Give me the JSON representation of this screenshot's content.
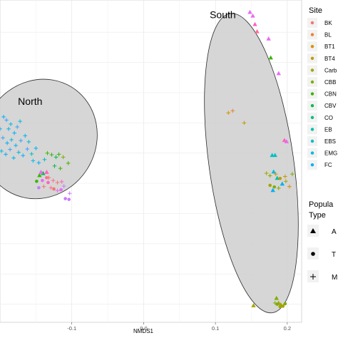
{
  "chart_data": {
    "type": "scatter",
    "xlabel": "NMDS1",
    "ylabel": "",
    "xlim": [
      -0.2,
      0.22
    ],
    "ylim": [
      -0.42,
      0.38
    ],
    "x_ticks": [
      -0.1,
      0.0,
      0.1,
      0.2
    ],
    "x_tick_labels": [
      "-0.1",
      "0.0",
      "0.1",
      "0.2"
    ],
    "grid": true,
    "legend_placement": "right",
    "group_labels": [
      {
        "name": "North",
        "x": -0.175,
        "y": 0.12
      },
      {
        "name": "South",
        "x": 0.092,
        "y": 0.335
      }
    ],
    "ellipses": [
      {
        "group": "North",
        "cx": -0.145,
        "cy": 0.035,
        "rx": 0.085,
        "ry": 0.14,
        "angle": -58
      },
      {
        "group": "South",
        "cx": 0.15,
        "cy": -0.025,
        "rx": 0.059,
        "ry": 0.375,
        "angle": -8
      }
    ],
    "legend": {
      "site_title": "Site",
      "sites": [
        {
          "label": "BK",
          "color": "#F8766D"
        },
        {
          "label": "BL",
          "color": "#EA8331"
        },
        {
          "label": "BT1",
          "color": "#D89000"
        },
        {
          "label": "BT4",
          "color": "#C09B00"
        },
        {
          "label": "Carb",
          "color": "#A3A500"
        },
        {
          "label": "CBB",
          "color": "#7CAE00"
        },
        {
          "label": "CBN",
          "color": "#39B600"
        },
        {
          "label": "CBV",
          "color": "#00BB4E"
        },
        {
          "label": "CO",
          "color": "#00BF7D"
        },
        {
          "label": "EB",
          "color": "#00C1A3"
        },
        {
          "label": "EBS",
          "color": "#00BFC4"
        },
        {
          "label": "EMG",
          "color": "#00BAE0"
        },
        {
          "label": "FC",
          "color": "#00B0F6"
        }
      ],
      "type_title_line1": "Popula",
      "type_title_line2": "Type",
      "types": [
        {
          "label": "A",
          "shape": "triangle"
        },
        {
          "label": "T",
          "shape": "circle"
        },
        {
          "label": "M",
          "shape": "plus"
        }
      ]
    },
    "series": [
      {
        "name": "A",
        "shape": "triangle",
        "points": [
          {
            "x": 0.148,
            "y": 0.35,
            "c": "#E76BF3"
          },
          {
            "x": 0.152,
            "y": 0.341,
            "c": "#E76BF3"
          },
          {
            "x": 0.155,
            "y": 0.32,
            "c": "#FF62BC"
          },
          {
            "x": 0.158,
            "y": 0.302,
            "c": "#FF6C90"
          },
          {
            "x": 0.174,
            "y": 0.284,
            "c": "#E76BF3"
          },
          {
            "x": 0.177,
            "y": 0.237,
            "c": "#39B600"
          },
          {
            "x": 0.188,
            "y": 0.198,
            "c": "#E76BF3"
          },
          {
            "x": 0.199,
            "y": 0.029,
            "c": "#E76BF3"
          },
          {
            "x": 0.196,
            "y": 0.032,
            "c": "#FF62BC"
          },
          {
            "x": 0.179,
            "y": -0.005,
            "c": "#00BFC4"
          },
          {
            "x": 0.183,
            "y": -0.005,
            "c": "#00BFC4"
          },
          {
            "x": 0.181,
            "y": -0.046,
            "c": "#00BAE0"
          },
          {
            "x": 0.186,
            "y": -0.062,
            "c": "#00C1A3"
          },
          {
            "x": 0.193,
            "y": -0.076,
            "c": "#00B0F6"
          },
          {
            "x": 0.18,
            "y": -0.092,
            "c": "#00B0F6"
          },
          {
            "x": 0.185,
            "y": -0.36,
            "c": "#7CAE00"
          },
          {
            "x": 0.188,
            "y": -0.372,
            "c": "#A3A500"
          },
          {
            "x": 0.191,
            "y": -0.376,
            "c": "#A3A500"
          },
          {
            "x": 0.153,
            "y": -0.378,
            "c": "#A3A500"
          },
          {
            "x": -0.145,
            "y": -0.055,
            "c": "#39B600"
          },
          {
            "x": -0.14,
            "y": -0.05,
            "c": "#00BB4E"
          },
          {
            "x": -0.143,
            "y": -0.047,
            "c": "#E76BF3"
          },
          {
            "x": -0.135,
            "y": -0.047,
            "c": "#FF62BC"
          }
        ]
      },
      {
        "name": "T",
        "shape": "circle",
        "points": [
          {
            "x": -0.141,
            "y": -0.068,
            "c": "#E76BF3"
          },
          {
            "x": -0.133,
            "y": -0.073,
            "c": "#FF62BC"
          },
          {
            "x": -0.135,
            "y": -0.061,
            "c": "#FF6C90"
          },
          {
            "x": -0.146,
            "y": -0.086,
            "c": "#C77CFF"
          },
          {
            "x": -0.125,
            "y": -0.089,
            "c": "#F8766D"
          },
          {
            "x": -0.115,
            "y": -0.091,
            "c": "#E76BF3"
          },
          {
            "x": -0.109,
            "y": -0.113,
            "c": "#C77CFF"
          },
          {
            "x": -0.104,
            "y": -0.115,
            "c": "#C77CFF"
          },
          {
            "x": -0.149,
            "y": -0.07,
            "c": "#39B600"
          },
          {
            "x": 0.182,
            "y": -0.084,
            "c": "#7CAE00"
          },
          {
            "x": 0.176,
            "y": -0.08,
            "c": "#A3A500"
          },
          {
            "x": 0.19,
            "y": -0.063,
            "c": "#C09B00"
          },
          {
            "x": 0.186,
            "y": -0.375,
            "c": "#7CAE00"
          },
          {
            "x": 0.19,
            "y": -0.381,
            "c": "#A3A500"
          },
          {
            "x": 0.194,
            "y": -0.38,
            "c": "#A3A500"
          },
          {
            "x": 0.197,
            "y": -0.374,
            "c": "#7CAE00"
          }
        ]
      },
      {
        "name": "M",
        "shape": "plus",
        "points": [
          {
            "x": -0.2,
            "y": 0.06,
            "c": "#00B0F6"
          },
          {
            "x": -0.195,
            "y": 0.09,
            "c": "#00B0F6"
          },
          {
            "x": -0.191,
            "y": 0.082,
            "c": "#35A2FF"
          },
          {
            "x": -0.188,
            "y": 0.06,
            "c": "#00B0F6"
          },
          {
            "x": -0.185,
            "y": 0.072,
            "c": "#00BAE0"
          },
          {
            "x": -0.18,
            "y": 0.05,
            "c": "#00B0F6"
          },
          {
            "x": -0.176,
            "y": 0.065,
            "c": "#35A2FF"
          },
          {
            "x": -0.172,
            "y": 0.079,
            "c": "#00BAE0"
          },
          {
            "x": -0.196,
            "y": 0.038,
            "c": "#35A2FF"
          },
          {
            "x": -0.19,
            "y": 0.025,
            "c": "#00B0F6"
          },
          {
            "x": -0.184,
            "y": 0.033,
            "c": "#00BAE0"
          },
          {
            "x": -0.178,
            "y": 0.019,
            "c": "#00B0F6"
          },
          {
            "x": -0.171,
            "y": 0.031,
            "c": "#35A2FF"
          },
          {
            "x": -0.165,
            "y": 0.043,
            "c": "#00B0F6"
          },
          {
            "x": -0.16,
            "y": 0.028,
            "c": "#00BAE0"
          },
          {
            "x": -0.198,
            "y": 0.005,
            "c": "#00BAE0"
          },
          {
            "x": -0.192,
            "y": -0.003,
            "c": "#00B0F6"
          },
          {
            "x": -0.186,
            "y": 0.009,
            "c": "#35A2FF"
          },
          {
            "x": -0.181,
            "y": -0.012,
            "c": "#00B0F6"
          },
          {
            "x": -0.174,
            "y": 0.002,
            "c": "#00BAE0"
          },
          {
            "x": -0.168,
            "y": -0.006,
            "c": "#00B0F6"
          },
          {
            "x": -0.162,
            "y": 0.01,
            "c": "#35A2FF"
          },
          {
            "x": -0.156,
            "y": -0.002,
            "c": "#00BFC4"
          },
          {
            "x": -0.15,
            "y": 0.012,
            "c": "#00B0F6"
          },
          {
            "x": -0.154,
            "y": -0.019,
            "c": "#00BAE0"
          },
          {
            "x": -0.146,
            "y": -0.024,
            "c": "#00B0F6"
          },
          {
            "x": -0.138,
            "y": -0.016,
            "c": "#00BFC4"
          },
          {
            "x": -0.134,
            "y": 0.0,
            "c": "#39B600"
          },
          {
            "x": -0.128,
            "y": -0.004,
            "c": "#39B600"
          },
          {
            "x": -0.122,
            "y": -0.01,
            "c": "#00BB4E"
          },
          {
            "x": -0.118,
            "y": -0.003,
            "c": "#39B600"
          },
          {
            "x": -0.112,
            "y": -0.01,
            "c": "#7CAE00"
          },
          {
            "x": -0.105,
            "y": -0.025,
            "c": "#39B600"
          },
          {
            "x": -0.124,
            "y": -0.032,
            "c": "#00BB4E"
          },
          {
            "x": -0.116,
            "y": -0.038,
            "c": "#39B600"
          },
          {
            "x": -0.132,
            "y": -0.061,
            "c": "#F8766D"
          },
          {
            "x": -0.126,
            "y": -0.068,
            "c": "#FF6C90"
          },
          {
            "x": -0.12,
            "y": -0.073,
            "c": "#F8766D"
          },
          {
            "x": -0.114,
            "y": -0.071,
            "c": "#FF62BC"
          },
          {
            "x": -0.139,
            "y": -0.083,
            "c": "#F8766D"
          },
          {
            "x": -0.129,
            "y": -0.086,
            "c": "#FF6C90"
          },
          {
            "x": -0.12,
            "y": -0.093,
            "c": "#E76BF3"
          },
          {
            "x": -0.111,
            "y": -0.082,
            "c": "#C77CFF"
          },
          {
            "x": -0.103,
            "y": -0.1,
            "c": "#C77CFF"
          },
          {
            "x": 0.118,
            "y": 0.1,
            "c": "#D89000"
          },
          {
            "x": 0.124,
            "y": 0.105,
            "c": "#EA8331"
          },
          {
            "x": 0.14,
            "y": 0.075,
            "c": "#C09B00"
          },
          {
            "x": 0.171,
            "y": -0.05,
            "c": "#A3A500"
          },
          {
            "x": 0.176,
            "y": -0.056,
            "c": "#7CAE00"
          },
          {
            "x": 0.184,
            "y": -0.052,
            "c": "#D89000"
          },
          {
            "x": 0.197,
            "y": -0.058,
            "c": "#C09B00"
          },
          {
            "x": 0.207,
            "y": -0.052,
            "c": "#7CAE00"
          },
          {
            "x": 0.198,
            "y": -0.07,
            "c": "#A3A500"
          },
          {
            "x": 0.203,
            "y": -0.083,
            "c": "#D89000"
          },
          {
            "x": 0.188,
            "y": -0.087,
            "c": "#7CAE00"
          },
          {
            "x": 0.183,
            "y": -0.372,
            "c": "#7CAE00"
          }
        ]
      }
    ]
  }
}
